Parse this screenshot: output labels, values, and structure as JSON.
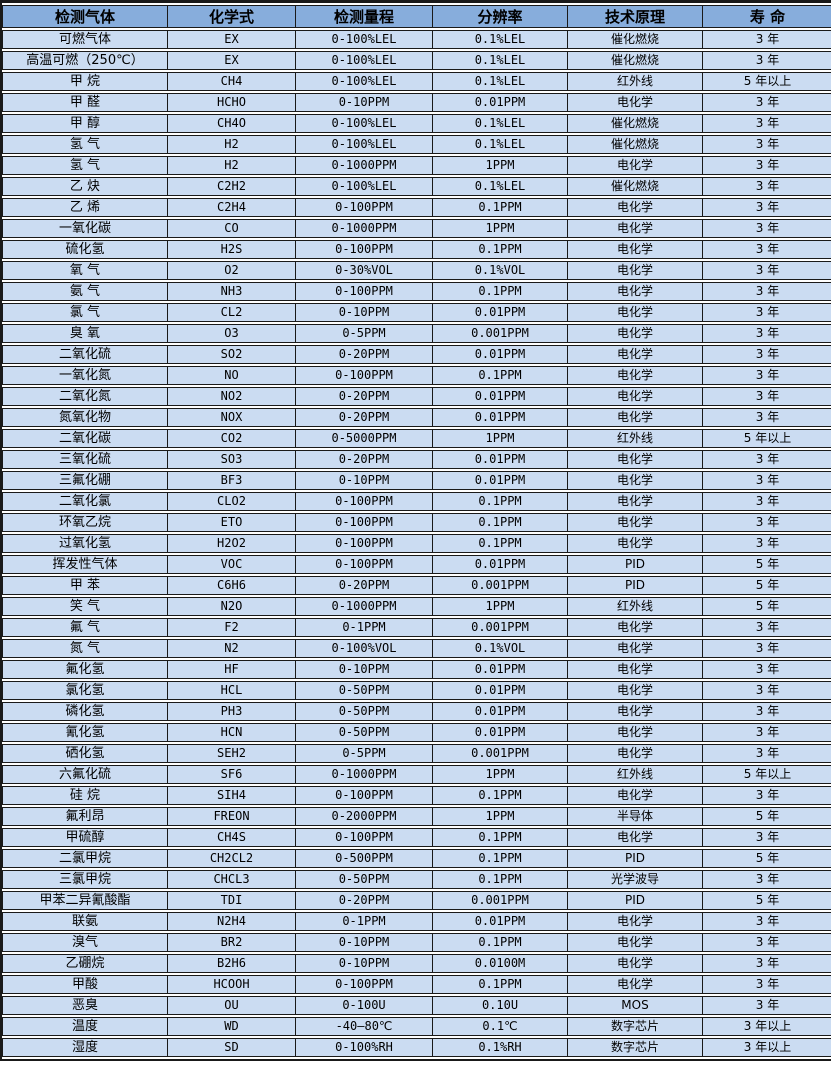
{
  "colors": {
    "header_bg": "#87ADDC",
    "row_bg": "#CBDCF2",
    "border": "#1a1a1a",
    "gap": "#ffffff"
  },
  "table": {
    "headers": [
      "检测气体",
      "化学式",
      "检测量程",
      "分辨率",
      "技术原理",
      "寿 命"
    ],
    "rows": [
      [
        "可燃气体",
        "EX",
        "0-100%LEL",
        "0.1%LEL",
        "催化燃烧",
        "3 年"
      ],
      [
        "高温可燃（250℃）",
        "EX",
        "0-100%LEL",
        "0.1%LEL",
        "催化燃烧",
        "3 年"
      ],
      [
        "甲 烷",
        "CH4",
        "0-100%LEL",
        "0.1%LEL",
        "红外线",
        "5 年以上"
      ],
      [
        "甲 醛",
        "HCHO",
        "0-10PPM",
        "0.01PPM",
        "电化学",
        "3 年"
      ],
      [
        "甲 醇",
        "CH4O",
        "0-100%LEL",
        "0.1%LEL",
        "催化燃烧",
        "3 年"
      ],
      [
        "氢 气",
        "H2",
        "0-100%LEL",
        "0.1%LEL",
        "催化燃烧",
        "3 年"
      ],
      [
        "氢 气",
        "H2",
        "0-1000PPM",
        "1PPM",
        "电化学",
        "3 年"
      ],
      [
        "乙 炔",
        "C2H2",
        "0-100%LEL",
        "0.1%LEL",
        "催化燃烧",
        "3 年"
      ],
      [
        "乙 烯",
        "C2H4",
        "0-100PPM",
        "0.1PPM",
        "电化学",
        "3 年"
      ],
      [
        "一氧化碳",
        "CO",
        "0-1000PPM",
        "1PPM",
        "电化学",
        "3 年"
      ],
      [
        "硫化氢",
        "H2S",
        "0-100PPM",
        "0.1PPM",
        "电化学",
        "3 年"
      ],
      [
        "氧 气",
        "O2",
        "0-30%VOL",
        "0.1%VOL",
        "电化学",
        "3 年"
      ],
      [
        "氨 气",
        "NH3",
        "0-100PPM",
        "0.1PPM",
        "电化学",
        "3 年"
      ],
      [
        "氯 气",
        "CL2",
        "0-10PPM",
        "0.01PPM",
        "电化学",
        "3 年"
      ],
      [
        "臭 氧",
        "O3",
        "0-5PPM",
        "0.001PPM",
        "电化学",
        "3 年"
      ],
      [
        "二氧化硫",
        "SO2",
        "0-20PPM",
        "0.01PPM",
        "电化学",
        "3 年"
      ],
      [
        "一氧化氮",
        "NO",
        "0-100PPM",
        "0.1PPM",
        "电化学",
        "3 年"
      ],
      [
        "二氧化氮",
        "NO2",
        "0-20PPM",
        "0.01PPM",
        "电化学",
        "3 年"
      ],
      [
        "氮氧化物",
        "NOX",
        "0-20PPM",
        "0.01PPM",
        "电化学",
        "3 年"
      ],
      [
        "二氧化碳",
        "CO2",
        "0-5000PPM",
        "1PPM",
        "红外线",
        "5 年以上"
      ],
      [
        "三氧化硫",
        "SO3",
        "0-20PPM",
        "0.01PPM",
        "电化学",
        "3 年"
      ],
      [
        "三氟化硼",
        "BF3",
        "0-10PPM",
        "0.01PPM",
        "电化学",
        "3 年"
      ],
      [
        "二氧化氯",
        "CLO2",
        "0-100PPM",
        "0.1PPM",
        "电化学",
        "3 年"
      ],
      [
        "环氧乙烷",
        "ETO",
        "0-100PPM",
        "0.1PPM",
        "电化学",
        "3 年"
      ],
      [
        "过氧化氢",
        "H2O2",
        "0-100PPM",
        "0.1PPM",
        "电化学",
        "3 年"
      ],
      [
        "挥发性气体",
        "VOC",
        "0-100PPM",
        "0.01PPM",
        "PID",
        "5 年"
      ],
      [
        "甲 苯",
        "C6H6",
        "0-20PPM",
        "0.001PPM",
        "PID",
        "5 年"
      ],
      [
        "笑 气",
        "N2O",
        "0-1000PPM",
        "1PPM",
        "红外线",
        "5 年"
      ],
      [
        "氟 气",
        "F2",
        "0-1PPM",
        "0.001PPM",
        "电化学",
        "3 年"
      ],
      [
        "氮 气",
        "N2",
        "0-100%VOL",
        "0.1%VOL",
        "电化学",
        "3 年"
      ],
      [
        "氟化氢",
        "HF",
        "0-10PPM",
        "0.01PPM",
        "电化学",
        "3 年"
      ],
      [
        "氯化氢",
        "HCL",
        "0-50PPM",
        "0.01PPM",
        "电化学",
        "3 年"
      ],
      [
        "磷化氢",
        "PH3",
        "0-50PPM",
        "0.01PPM",
        "电化学",
        "3 年"
      ],
      [
        "氰化氢",
        "HCN",
        "0-50PPM",
        "0.01PPM",
        "电化学",
        "3 年"
      ],
      [
        "硒化氢",
        "SEH2",
        "0-5PPM",
        "0.001PPM",
        "电化学",
        "3 年"
      ],
      [
        "六氟化硫",
        "SF6",
        "0-1000PPM",
        "1PPM",
        "红外线",
        "5 年以上"
      ],
      [
        "硅 烷",
        "SIH4",
        "0-100PPM",
        "0.1PPM",
        "电化学",
        "3 年"
      ],
      [
        "氟利昂",
        "FREON",
        "0-2000PPM",
        "1PPM",
        "半导体",
        "5 年"
      ],
      [
        "甲硫醇",
        "CH4S",
        "0-100PPM",
        "0.1PPM",
        "电化学",
        "3 年"
      ],
      [
        "二氯甲烷",
        "CH2CL2",
        "0-500PPM",
        "0.1PPM",
        "PID",
        "5 年"
      ],
      [
        "三氯甲烷",
        "CHCL3",
        "0-50PPM",
        "0.1PPM",
        "光学波导",
        "3 年"
      ],
      [
        "甲苯二异氰酸酯",
        "TDI",
        "0-20PPM",
        "0.001PPM",
        "PID",
        "5 年"
      ],
      [
        "联氨",
        "N2H4",
        "0-1PPM",
        "0.01PPM",
        "电化学",
        "3 年"
      ],
      [
        "溴气",
        "BR2",
        "0-10PPM",
        "0.1PPM",
        "电化学",
        "3 年"
      ],
      [
        "乙硼烷",
        "B2H6",
        "0-10PPM",
        "0.0100M",
        "电化学",
        "3 年"
      ],
      [
        "甲酸",
        "HCOOH",
        "0-100PPM",
        "0.1PPM",
        "电化学",
        "3 年"
      ],
      [
        "恶臭",
        "OU",
        "0-100U",
        "0.10U",
        "MOS",
        "3 年"
      ],
      [
        "温度",
        "WD",
        "-40—80℃",
        "0.1℃",
        "数字芯片",
        "3 年以上"
      ],
      [
        "湿度",
        "SD",
        "0-100%RH",
        "0.1%RH",
        "数字芯片",
        "3 年以上"
      ]
    ]
  }
}
